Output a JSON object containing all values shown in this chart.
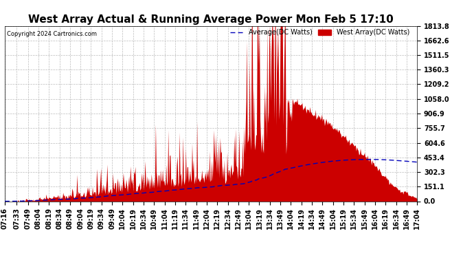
{
  "title": "West Array Actual & Running Average Power Mon Feb 5 17:10",
  "copyright": "Copyright 2024 Cartronics.com",
  "legend_avg": "Average(DC Watts)",
  "legend_west": "West Array(DC Watts)",
  "ylabel_right_ticks": [
    0.0,
    151.1,
    302.3,
    453.4,
    604.6,
    755.7,
    906.9,
    1058.0,
    1209.2,
    1360.3,
    1511.5,
    1662.6,
    1813.8
  ],
  "ymin": 0.0,
  "ymax": 1813.8,
  "background_color": "#ffffff",
  "plot_bg_color": "#ffffff",
  "area_color": "#cc0000",
  "avg_line_color": "#0000bb",
  "grid_color": "#bbbbbb",
  "title_fontsize": 11,
  "tick_fontsize": 7,
  "time_labels": [
    "07:16",
    "07:33",
    "07:49",
    "08:04",
    "08:19",
    "08:34",
    "08:49",
    "09:04",
    "09:19",
    "09:34",
    "09:49",
    "10:04",
    "10:19",
    "10:34",
    "10:49",
    "11:04",
    "11:19",
    "11:34",
    "11:49",
    "12:04",
    "12:19",
    "12:34",
    "12:49",
    "13:04",
    "13:19",
    "13:34",
    "13:49",
    "14:04",
    "14:19",
    "14:34",
    "14:49",
    "15:04",
    "15:19",
    "15:34",
    "15:49",
    "16:04",
    "16:19",
    "16:34",
    "16:49",
    "17:04"
  ]
}
